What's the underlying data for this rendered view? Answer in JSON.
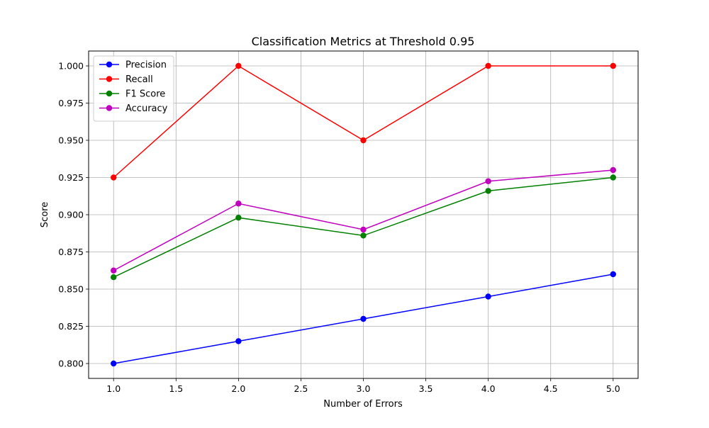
{
  "chart_data": {
    "type": "line",
    "title": "Classification Metrics at Threshold 0.95",
    "xlabel": "Number of Errors",
    "ylabel": "Score",
    "x": [
      1.0,
      2.0,
      3.0,
      4.0,
      5.0
    ],
    "xlim": [
      0.8,
      5.2
    ],
    "ylim": [
      0.79,
      1.01
    ],
    "xticks": [
      1.0,
      1.5,
      2.0,
      2.5,
      3.0,
      3.5,
      4.0,
      4.5,
      5.0
    ],
    "xtick_labels": [
      "1.0",
      "1.5",
      "2.0",
      "2.5",
      "3.0",
      "3.5",
      "4.0",
      "4.5",
      "5.0"
    ],
    "yticks": [
      0.8,
      0.825,
      0.85,
      0.875,
      0.9,
      0.925,
      0.95,
      0.975,
      1.0
    ],
    "ytick_labels": [
      "0.800",
      "0.825",
      "0.850",
      "0.875",
      "0.900",
      "0.925",
      "0.950",
      "0.975",
      "1.000"
    ],
    "grid": true,
    "legend_position": "upper-left",
    "series": [
      {
        "name": "Precision",
        "color": "#0000ff",
        "values": [
          0.8,
          0.815,
          0.83,
          0.845,
          0.86
        ]
      },
      {
        "name": "Recall",
        "color": "#ff0000",
        "values": [
          0.925,
          1.0,
          0.95,
          1.0,
          1.0
        ]
      },
      {
        "name": "F1 Score",
        "color": "#008000",
        "values": [
          0.858,
          0.898,
          0.886,
          0.916,
          0.925
        ]
      },
      {
        "name": "Accuracy",
        "color": "#bf00bf",
        "values": [
          0.8625,
          0.9075,
          0.89,
          0.9225,
          0.93
        ]
      }
    ]
  }
}
